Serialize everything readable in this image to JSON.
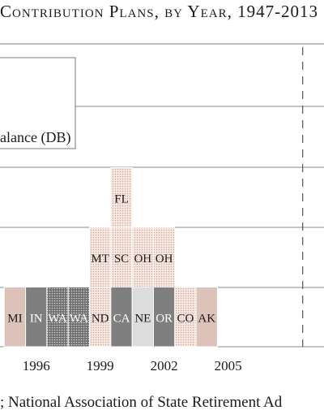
{
  "title": "Contribution Plans, by Year, 1947-2013",
  "source_note": "; National Association of State Retirement Ad",
  "chart_data": {
    "type": "bar",
    "xlim": [
      1994.3,
      2009.5
    ],
    "x_ticks": [
      {
        "year": 1996,
        "label": "1996"
      },
      {
        "year": 1999,
        "label": "1999"
      },
      {
        "year": 2002,
        "label": "2002"
      },
      {
        "year": 2005,
        "label": "2005"
      }
    ],
    "legend_label": "alance (DB)",
    "dashed_marker_year": 2008.5,
    "colors": {
      "frame": "#666666",
      "grid": "#888888",
      "pink": "#dcc2b8",
      "dark_gray": "#7f7f7f",
      "light_gray": "#dcdcdc",
      "dotted_bg": "#f6e8e2",
      "dotted_dot": "#cfa79a"
    },
    "stack_items": [
      {
        "year": 1995,
        "level": 0,
        "label": "MI",
        "style": "pink"
      },
      {
        "year": 1996,
        "level": 0,
        "label": "IN",
        "style": "dark"
      },
      {
        "year": 1997,
        "level": 0,
        "label": "WA",
        "style": "checker"
      },
      {
        "year": 1998,
        "level": 0,
        "label": "WA",
        "style": "checker"
      },
      {
        "year": 1999,
        "level": 0,
        "label": "ND",
        "style": "dotted"
      },
      {
        "year": 1999,
        "level": 1,
        "label": "MT",
        "style": "dotted"
      },
      {
        "year": 2000,
        "level": 0,
        "label": "CA",
        "style": "dark"
      },
      {
        "year": 2000,
        "level": 1,
        "label": "SC",
        "style": "dotted"
      },
      {
        "year": 2000,
        "level": 2,
        "label": "FL",
        "style": "dotted"
      },
      {
        "year": 2001,
        "level": 0,
        "label": "NE",
        "style": "light"
      },
      {
        "year": 2001,
        "level": 1,
        "label": "OH",
        "style": "dotted"
      },
      {
        "year": 2002,
        "level": 0,
        "label": "OR",
        "style": "dark"
      },
      {
        "year": 2002,
        "level": 1,
        "label": "OH",
        "style": "dotted"
      },
      {
        "year": 2003,
        "level": 0,
        "label": "CO",
        "style": "dotted"
      },
      {
        "year": 2004,
        "level": 0,
        "label": "AK",
        "style": "pink"
      }
    ]
  }
}
